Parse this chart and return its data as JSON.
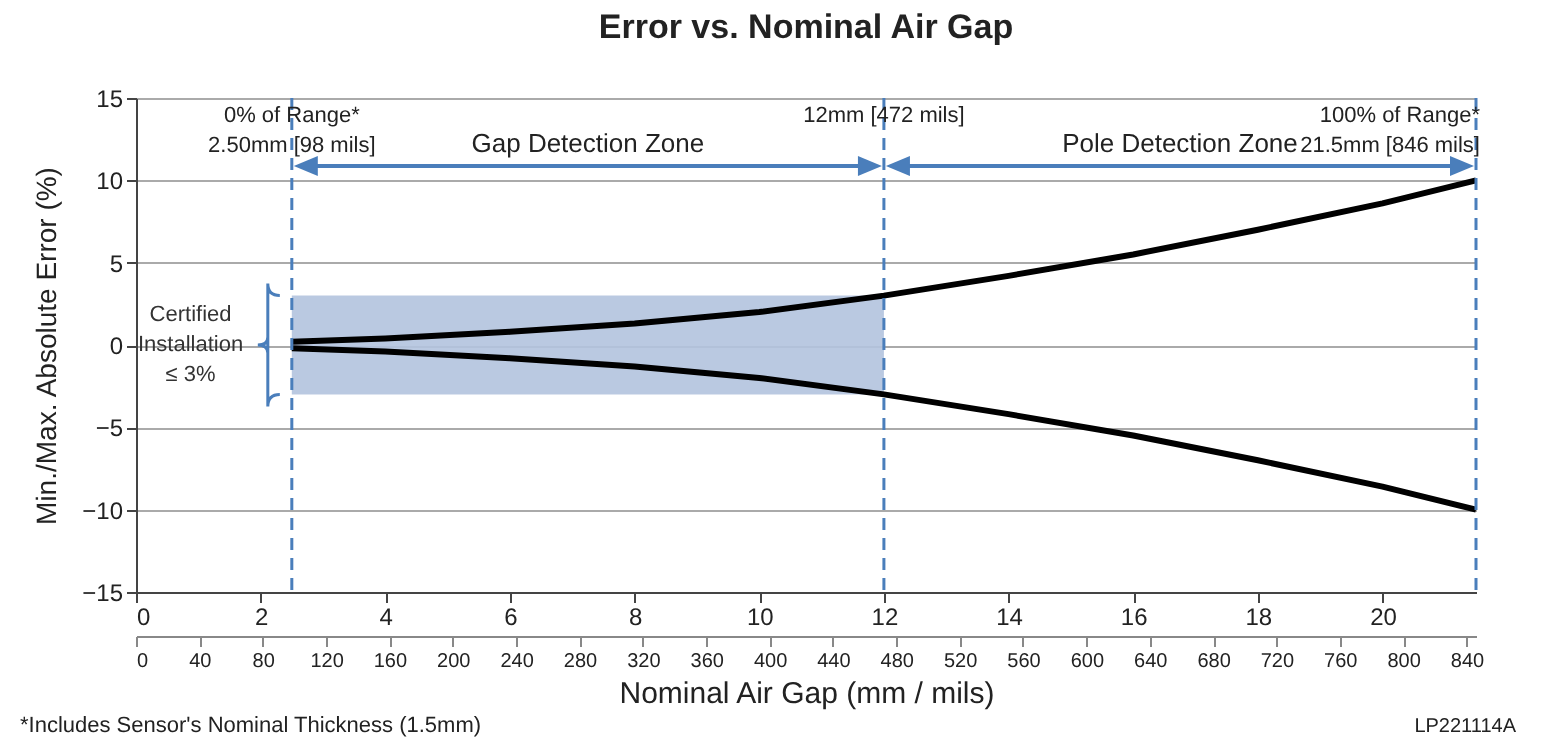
{
  "chart_data": {
    "type": "line",
    "title": "Error vs. Nominal Air Gap",
    "xlabel": "Nominal Air Gap (mm / mils)",
    "ylabel": "Min./Max. Absolute Error (%)",
    "x": [
      2.5,
      4,
      6,
      8,
      10,
      12,
      14,
      16,
      18,
      20,
      21.5
    ],
    "series": [
      {
        "color": "#000000",
        "values": [
          0.2,
          0.4,
          0.8,
          1.3,
          2.0,
          3.0,
          4.2,
          5.5,
          7.0,
          8.6,
          10
        ]
      },
      {
        "color": "#000000",
        "values": [
          -0.2,
          -0.4,
          -0.8,
          -1.3,
          -2.0,
          -3.0,
          -4.2,
          -5.5,
          -7.0,
          -8.6,
          -10
        ]
      }
    ],
    "xlim": [
      0,
      21.5
    ],
    "xticks": [
      0,
      2,
      4,
      6,
      8,
      10,
      12,
      14,
      16,
      18,
      20
    ],
    "x2lim": [
      0,
      846
    ],
    "x2ticks": [
      0,
      40,
      80,
      120,
      160,
      200,
      240,
      280,
      320,
      360,
      400,
      440,
      480,
      520,
      560,
      600,
      640,
      680,
      720,
      760,
      800,
      840
    ],
    "ylim": [
      -15,
      15
    ],
    "yticks": [
      -15,
      -10,
      -5,
      0,
      5,
      10,
      15
    ],
    "grid": "y",
    "ref_lines": [
      {
        "axis": "x",
        "value": 2.5,
        "label": "0% of Range*\n2.50mm [98 mils]",
        "color": "#4a7ebb",
        "line_style": "dashed"
      },
      {
        "axis": "x",
        "value": 12,
        "label": "12mm [472 mils]",
        "color": "#4a7ebb",
        "line_style": "dashed"
      },
      {
        "axis": "x",
        "value": 21.5,
        "label": "100% of Range*\n21.5mm [846 mils]",
        "color": "#4a7ebb",
        "line_style": "dashed"
      }
    ],
    "bands": [
      {
        "axis": "y",
        "from": -3,
        "to": 3,
        "label": "Certified\nInstallation\n≤ 3%",
        "color": "#b3c3de"
      }
    ],
    "annotations": [
      "Gap Detection Zone",
      "Pole Detection Zone",
      "*Includes Sensor's Nominal Thickness (1.5mm)",
      "LP221114A"
    ]
  }
}
